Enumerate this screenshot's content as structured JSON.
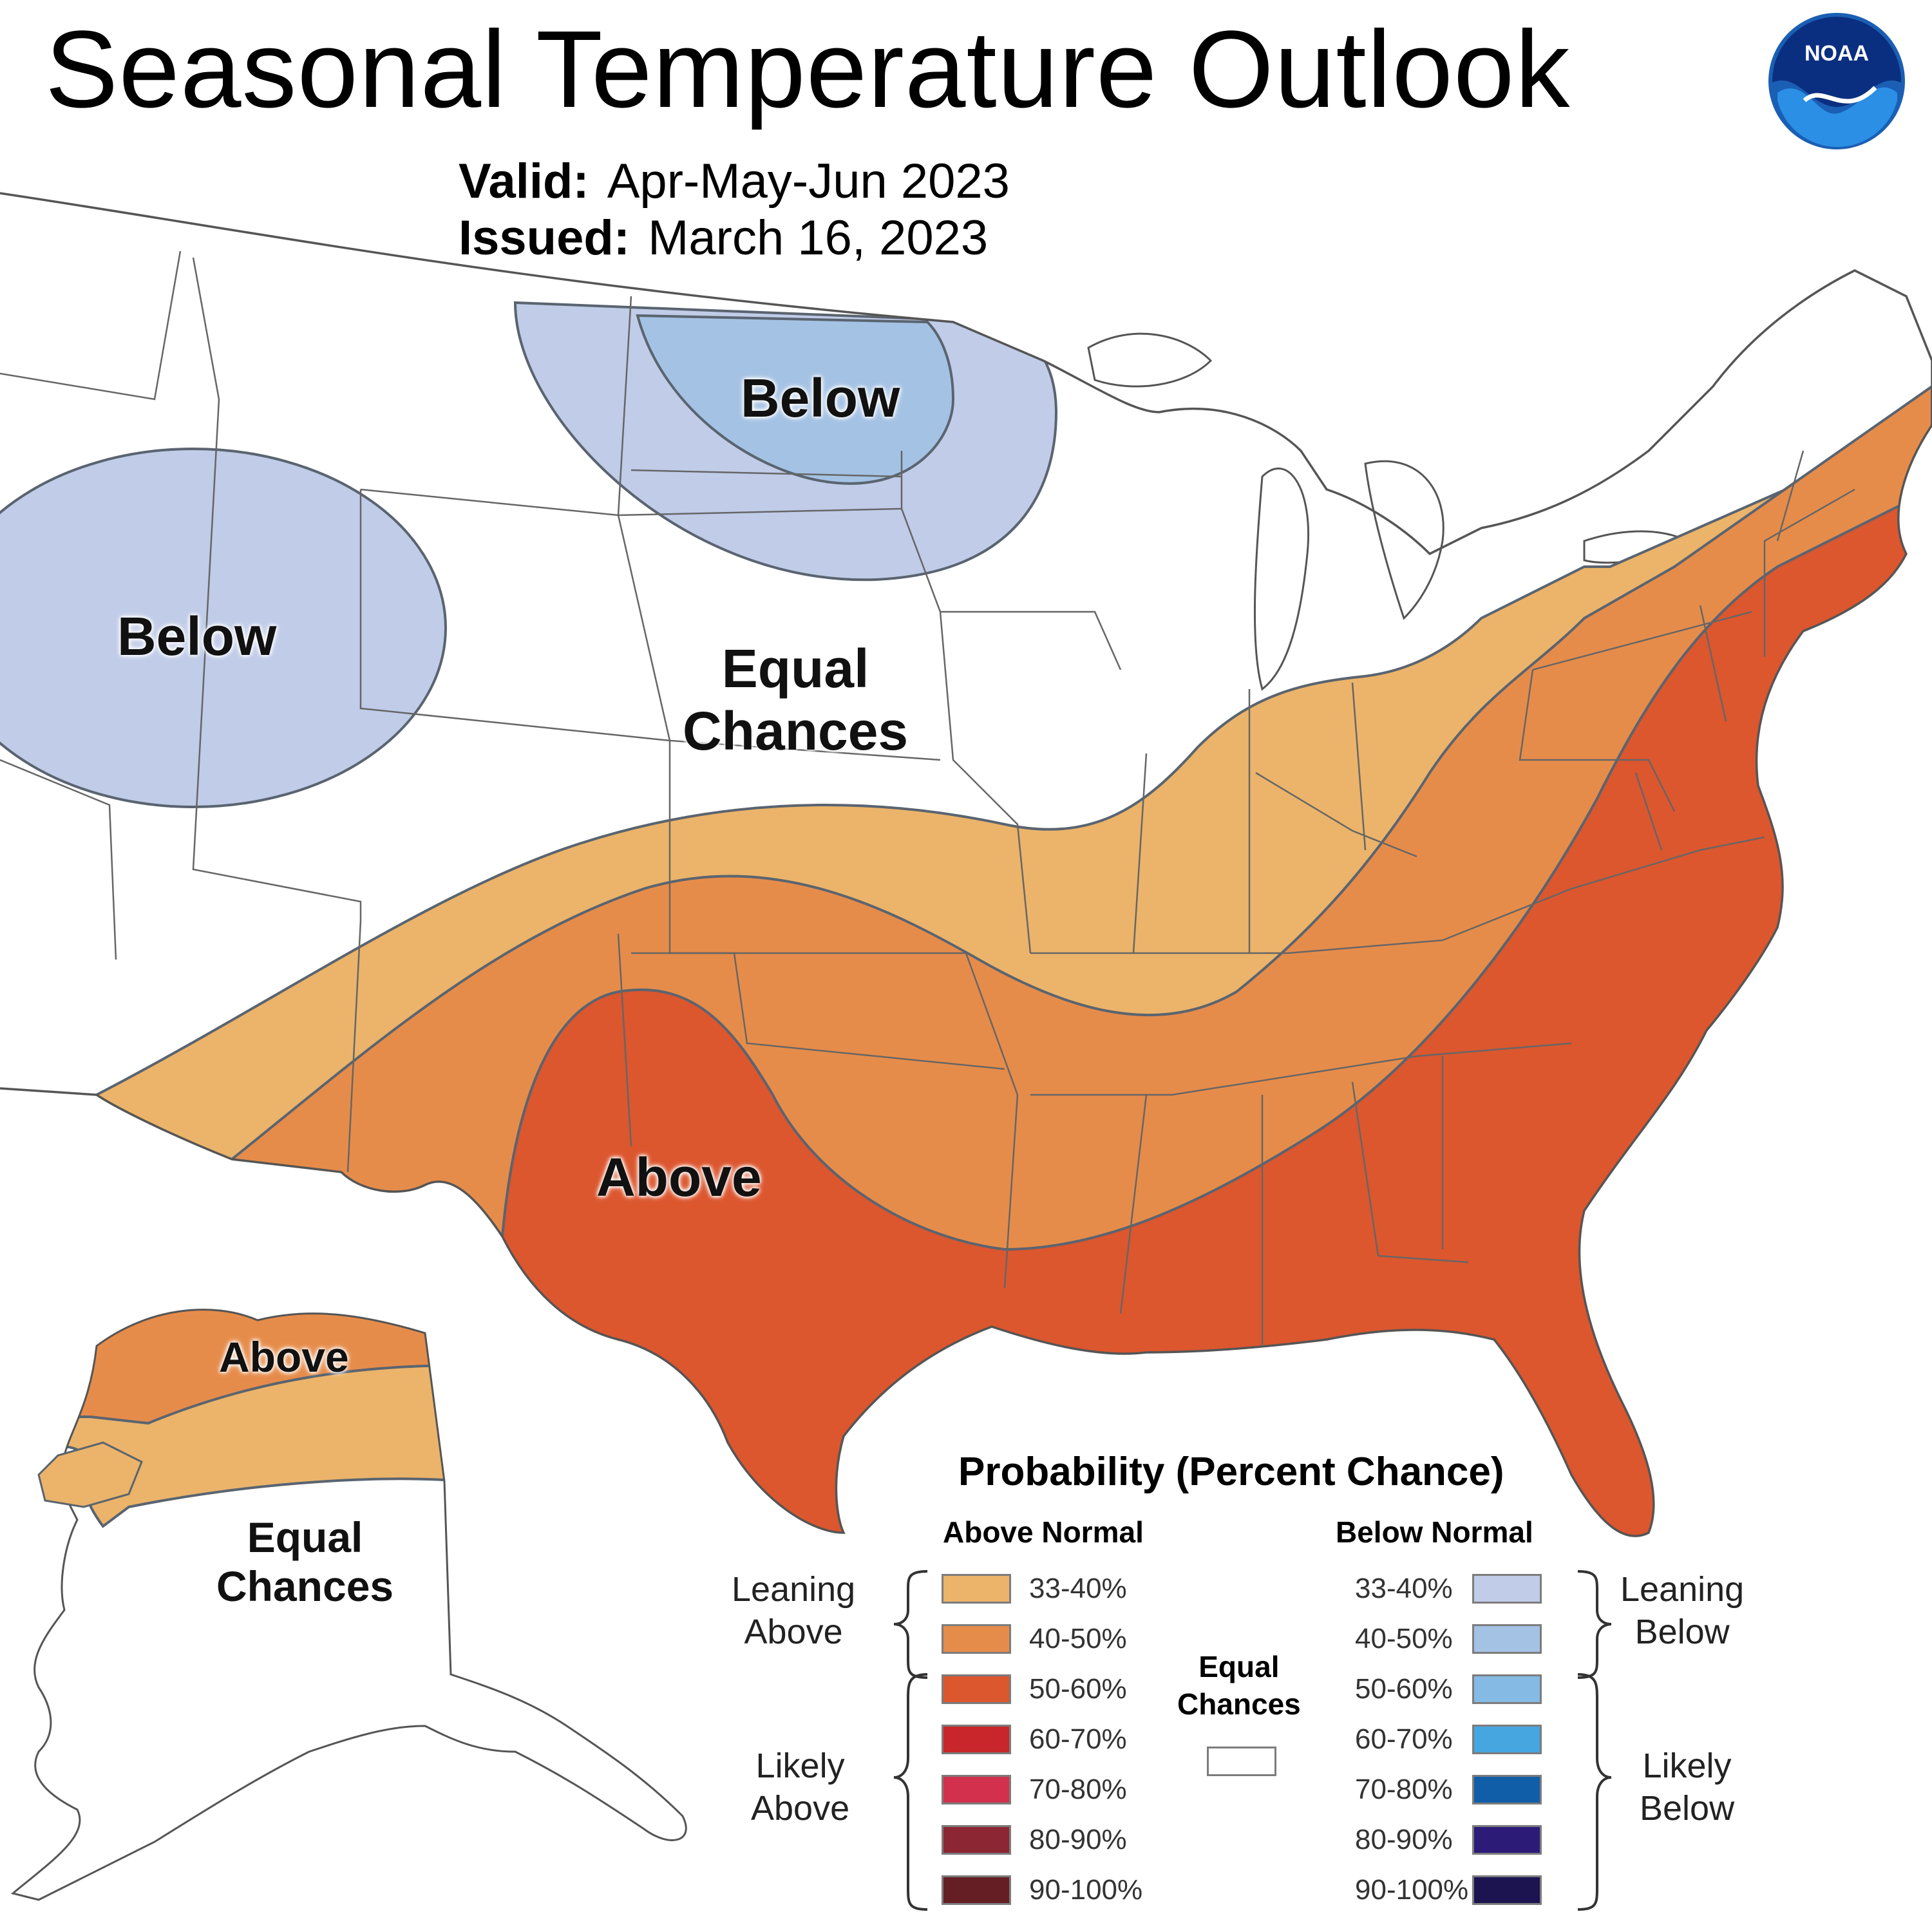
{
  "header": {
    "title": "Seasonal Temperature Outlook",
    "valid_label": "Valid:",
    "valid_value": "Apr-May-Jun 2023",
    "issued_label": "Issued:",
    "issued_value": "March 16, 2023"
  },
  "logo": {
    "text": "NOAA",
    "icon": "noaa-logo"
  },
  "map_labels": {
    "below_west": "Below",
    "below_north": "Below",
    "equal_chances_conus": [
      "Equal",
      "Chances"
    ],
    "above_south": "Above",
    "above_alaska": "Above",
    "equal_chances_alaska": [
      "Equal",
      "Chances"
    ]
  },
  "legend": {
    "title": "Probability (Percent Chance)",
    "above_header": "Above Normal",
    "below_header": "Below Normal",
    "leaning_above": [
      "Leaning",
      "Above"
    ],
    "likely_above": [
      "Likely",
      "Above"
    ],
    "leaning_below": [
      "Leaning",
      "Below"
    ],
    "likely_below": [
      "Likely",
      "Below"
    ],
    "equal_chances": [
      "Equal",
      "Chances"
    ],
    "above_items": [
      {
        "range": "33-40%",
        "color": "#ebb46a"
      },
      {
        "range": "40-50%",
        "color": "#e68c4a"
      },
      {
        "range": "50-60%",
        "color": "#dc562e"
      },
      {
        "range": "60-70%",
        "color": "#c8262a"
      },
      {
        "range": "70-80%",
        "color": "#d2304d"
      },
      {
        "range": "80-90%",
        "color": "#8c2632"
      },
      {
        "range": "90-100%",
        "color": "#641e24"
      }
    ],
    "below_items": [
      {
        "range": "33-40%",
        "color": "#c0cce8"
      },
      {
        "range": "40-50%",
        "color": "#a4c2e4"
      },
      {
        "range": "50-60%",
        "color": "#84bae4"
      },
      {
        "range": "60-70%",
        "color": "#46a6e0"
      },
      {
        "range": "70-80%",
        "color": "#105ea8"
      },
      {
        "range": "80-90%",
        "color": "#2c1c78"
      },
      {
        "range": "90-100%",
        "color": "#1c1450"
      }
    ],
    "equal_color": "#ffffff"
  }
}
